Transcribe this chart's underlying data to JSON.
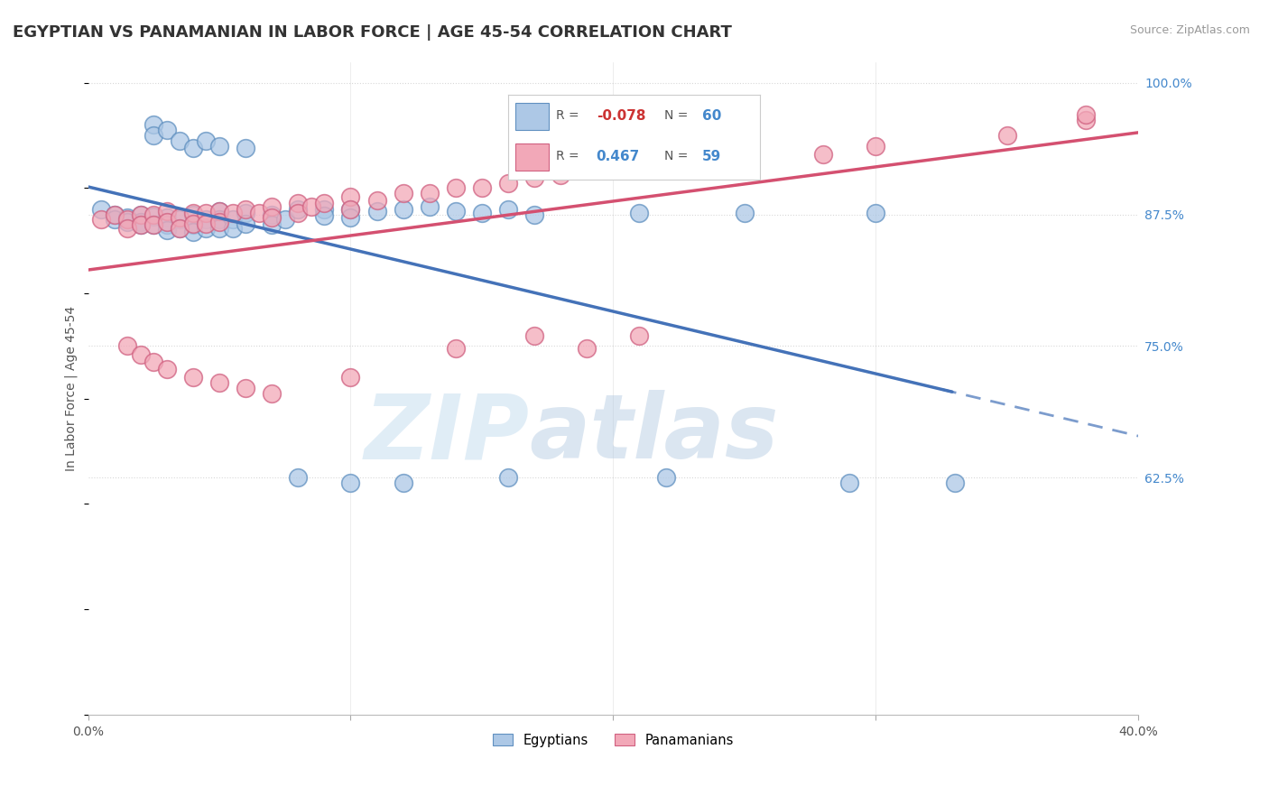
{
  "title": "EGYPTIAN VS PANAMANIAN IN LABOR FORCE | AGE 45-54 CORRELATION CHART",
  "source": "Source: ZipAtlas.com",
  "ylabel": "In Labor Force | Age 45-54",
  "xlim": [
    0.0,
    0.4
  ],
  "ylim": [
    0.4,
    1.02
  ],
  "yticks_right": [
    1.0,
    0.875,
    0.75,
    0.625
  ],
  "ytick_labels_right": [
    "100.0%",
    "87.5%",
    "75.0%",
    "62.5%"
  ],
  "blue_color": "#adc8e6",
  "pink_color": "#f2a8b8",
  "blue_edge_color": "#6090c0",
  "pink_edge_color": "#d06080",
  "blue_line_color": "#4472b8",
  "pink_line_color": "#d45070",
  "watermark_zip": "ZIP",
  "watermark_atlas": "atlas",
  "background_color": "#ffffff",
  "grid_color": "#d8d8d8",
  "blue_scatter_x": [
    0.005,
    0.01,
    0.01,
    0.015,
    0.015,
    0.02,
    0.02,
    0.02,
    0.025,
    0.025,
    0.03,
    0.03,
    0.03,
    0.035,
    0.035,
    0.04,
    0.04,
    0.04,
    0.045,
    0.045,
    0.05,
    0.05,
    0.05,
    0.055,
    0.055,
    0.06,
    0.06,
    0.07,
    0.07,
    0.075,
    0.08,
    0.09,
    0.09,
    0.1,
    0.1,
    0.11,
    0.12,
    0.13,
    0.14,
    0.15,
    0.16,
    0.17,
    0.21,
    0.25,
    0.3,
    0.08,
    0.1,
    0.12,
    0.16,
    0.22,
    0.29,
    0.33,
    0.025,
    0.025,
    0.03,
    0.035,
    0.04,
    0.045,
    0.05,
    0.06
  ],
  "blue_scatter_y": [
    0.88,
    0.875,
    0.87,
    0.872,
    0.868,
    0.875,
    0.868,
    0.865,
    0.873,
    0.865,
    0.872,
    0.865,
    0.86,
    0.87,
    0.862,
    0.875,
    0.865,
    0.858,
    0.87,
    0.862,
    0.878,
    0.87,
    0.862,
    0.87,
    0.862,
    0.876,
    0.866,
    0.875,
    0.865,
    0.87,
    0.88,
    0.88,
    0.874,
    0.88,
    0.872,
    0.878,
    0.88,
    0.882,
    0.878,
    0.876,
    0.88,
    0.875,
    0.876,
    0.876,
    0.876,
    0.625,
    0.62,
    0.62,
    0.625,
    0.625,
    0.62,
    0.62,
    0.96,
    0.95,
    0.955,
    0.945,
    0.938,
    0.945,
    0.94,
    0.938
  ],
  "pink_scatter_x": [
    0.005,
    0.01,
    0.015,
    0.015,
    0.02,
    0.02,
    0.025,
    0.025,
    0.03,
    0.03,
    0.035,
    0.035,
    0.04,
    0.04,
    0.045,
    0.045,
    0.05,
    0.05,
    0.055,
    0.06,
    0.065,
    0.07,
    0.07,
    0.08,
    0.08,
    0.085,
    0.09,
    0.1,
    0.1,
    0.11,
    0.12,
    0.13,
    0.14,
    0.15,
    0.16,
    0.17,
    0.18,
    0.19,
    0.2,
    0.22,
    0.25,
    0.28,
    0.3,
    0.35,
    0.38,
    0.015,
    0.02,
    0.025,
    0.03,
    0.04,
    0.05,
    0.06,
    0.07,
    0.1,
    0.14,
    0.17,
    0.19,
    0.21,
    0.38
  ],
  "pink_scatter_y": [
    0.87,
    0.875,
    0.87,
    0.862,
    0.875,
    0.865,
    0.875,
    0.865,
    0.878,
    0.868,
    0.872,
    0.862,
    0.876,
    0.866,
    0.876,
    0.866,
    0.878,
    0.868,
    0.876,
    0.88,
    0.876,
    0.882,
    0.872,
    0.886,
    0.876,
    0.882,
    0.886,
    0.892,
    0.88,
    0.888,
    0.895,
    0.895,
    0.9,
    0.9,
    0.905,
    0.91,
    0.912,
    0.918,
    0.92,
    0.922,
    0.928,
    0.932,
    0.94,
    0.95,
    0.965,
    0.75,
    0.742,
    0.735,
    0.728,
    0.72,
    0.715,
    0.71,
    0.705,
    0.72,
    0.748,
    0.76,
    0.748,
    0.76,
    0.97
  ],
  "title_fontsize": 13,
  "axis_label_fontsize": 10,
  "tick_fontsize": 10,
  "source_fontsize": 9
}
